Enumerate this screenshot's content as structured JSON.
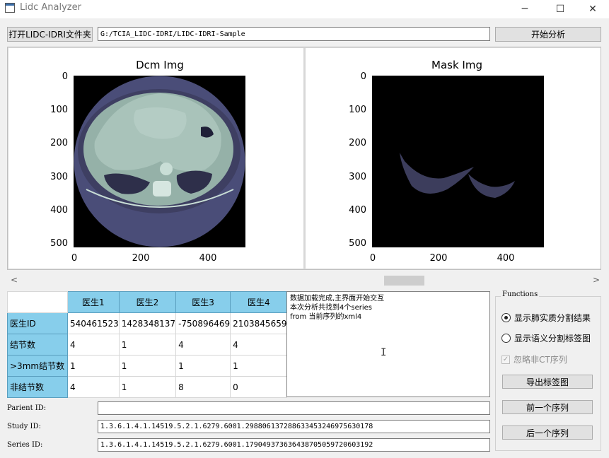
{
  "window": {
    "title": "Lidc Analyzer",
    "minimize_glyph": "─",
    "maximize_glyph": "☐",
    "close_glyph": "✕"
  },
  "toolbar": {
    "open_folder_label": "打开LIDC-IDRI文件夹",
    "path_value": "G:/TCIA_LIDC-IDRI/LIDC-IDRI-Sample",
    "start_label": "开始分析"
  },
  "plots": {
    "dcm": {
      "title": "Dcm Img",
      "y_ticks": [
        "0",
        "100",
        "200",
        "300",
        "400",
        "500"
      ],
      "x_ticks": [
        "0",
        "200",
        "400"
      ]
    },
    "mask": {
      "title": "Mask Img",
      "y_ticks": [
        "0",
        "100",
        "200",
        "300",
        "400",
        "500"
      ],
      "x_ticks": [
        "0",
        "200",
        "400"
      ]
    }
  },
  "scrollbar": {
    "left_arrow": "<",
    "right_arrow": ">"
  },
  "table": {
    "columns": [
      "医生1",
      "医生2",
      "医生3",
      "医生4"
    ],
    "rows": [
      {
        "header": "医生ID",
        "values": [
          "540461523",
          "1428348137",
          "-750896469",
          "2103845659"
        ]
      },
      {
        "header": "结节数",
        "values": [
          "4",
          "1",
          "4",
          "4"
        ]
      },
      {
        "header": ">3mm结节数",
        "values": [
          "1",
          "1",
          "1",
          "1"
        ]
      },
      {
        "header": "非结节数",
        "values": [
          "4",
          "1",
          "8",
          "0"
        ]
      }
    ]
  },
  "log": {
    "lines": [
      "数据加载完成,主界面开始交互",
      "本次分析共找到4个series",
      "from 当前序列的xml4"
    ],
    "cursor_glyph": "I"
  },
  "functions": {
    "title": "Functions",
    "radio1_label": "显示肺实质分割结果",
    "radio1_checked": true,
    "radio2_label": "显示语义分割标签图",
    "radio2_checked": false,
    "checkbox_label": "忽略非CT序列",
    "checkbox_glyph": "✓",
    "checkbox_checked": true,
    "checkbox_enabled": false,
    "export_label": "导出标签图",
    "prev_label": "前一个序列",
    "next_label": "后一个序列"
  },
  "info": {
    "patient_label": "Parient ID:",
    "patient_value": "",
    "study_label": "Study ID:",
    "study_value": "1.3.6.1.4.1.14519.5.2.1.6279.6001.298806137288633453246975630178",
    "series_label": "Series ID:",
    "series_value": "1.3.6.1.4.1.14519.5.2.1.6279.6001.179049373636438705059720603192"
  },
  "colors": {
    "header_blue": "#87ceeb",
    "ct_background": "#4a4d78",
    "ct_tissue": "#9bb6ae"
  }
}
